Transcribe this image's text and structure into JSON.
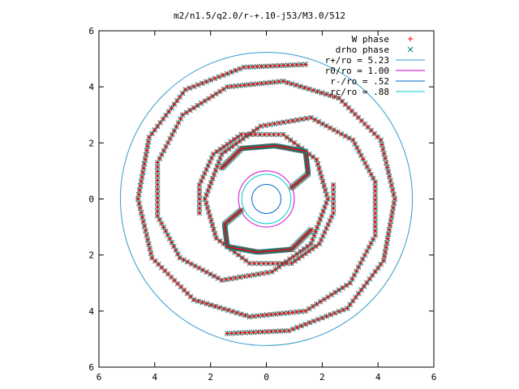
{
  "chart_data": {
    "type": "scatter",
    "title": "m2/n1.5/q2.0/r-+.10-j53/M3.0/512",
    "xlabel": "",
    "ylabel": "",
    "xlim": [
      -6,
      6
    ],
    "ylim": [
      -6,
      6
    ],
    "x_ticks": [
      "6",
      "4",
      "2",
      "0",
      "2",
      "4",
      "6"
    ],
    "y_ticks": [
      "6",
      "4",
      "2",
      "0",
      "2",
      "4",
      "6"
    ],
    "grid": false,
    "legend_position": "top-right",
    "series": [
      {
        "name": "W phase",
        "kind": "points",
        "marker": "plus",
        "color": "#ff0000"
      },
      {
        "name": "drho phase",
        "kind": "points",
        "marker": "cross",
        "color": "#008080"
      },
      {
        "name": "r+/ro = 5.23",
        "kind": "circle",
        "radius": 5.23,
        "color": "#3399cc"
      },
      {
        "name": "r0/ro = 1.00",
        "kind": "circle",
        "radius": 1.0,
        "color": "#cc00cc"
      },
      {
        "name": "r-/ro = .52",
        "kind": "circle",
        "radius": 0.52,
        "color": "#0066cc"
      },
      {
        "name": "rc/ro = .88",
        "kind": "circle",
        "radius": 0.88,
        "color": "#00cccc"
      }
    ],
    "spiral_arms": [
      {
        "points": [
          [
            2.4,
            0.5
          ],
          [
            2.4,
            -0.5
          ],
          [
            1.9,
            -1.6
          ],
          [
            0.9,
            -2.3
          ],
          [
            -0.6,
            -2.3
          ],
          [
            -1.8,
            -1.4
          ],
          [
            -2.2,
            0.0
          ],
          [
            -1.6,
            1.6
          ],
          [
            -0.2,
            2.6
          ],
          [
            1.6,
            2.9
          ],
          [
            3.1,
            2.1
          ],
          [
            3.9,
            0.6
          ],
          [
            3.9,
            -1.3
          ],
          [
            3.0,
            -3.0
          ],
          [
            1.4,
            -4.0
          ],
          [
            -0.6,
            -4.2
          ],
          [
            -2.6,
            -3.6
          ],
          [
            -4.1,
            -2.1
          ],
          [
            -4.6,
            0.0
          ],
          [
            -4.2,
            2.2
          ],
          [
            -2.9,
            3.9
          ],
          [
            -0.8,
            4.7
          ],
          [
            1.4,
            4.8
          ]
        ]
      },
      {
        "points": [
          [
            -2.4,
            -0.5
          ],
          [
            -2.4,
            0.5
          ],
          [
            -1.9,
            1.6
          ],
          [
            -0.9,
            2.3
          ],
          [
            0.6,
            2.3
          ],
          [
            1.8,
            1.4
          ],
          [
            2.2,
            0.0
          ],
          [
            1.6,
            -1.6
          ],
          [
            0.2,
            -2.6
          ],
          [
            -1.6,
            -2.9
          ],
          [
            -3.1,
            -2.1
          ],
          [
            -3.9,
            -0.6
          ],
          [
            -3.9,
            1.3
          ],
          [
            -3.0,
            3.0
          ],
          [
            -1.4,
            4.0
          ],
          [
            0.6,
            4.2
          ],
          [
            2.6,
            3.6
          ],
          [
            4.1,
            2.1
          ],
          [
            4.6,
            0.0
          ],
          [
            4.2,
            -2.2
          ],
          [
            2.9,
            -3.9
          ],
          [
            0.8,
            -4.7
          ],
          [
            -1.4,
            -4.8
          ]
        ]
      }
    ],
    "inner_arms": [
      {
        "points": [
          [
            0.9,
            0.4
          ],
          [
            1.5,
            0.9
          ],
          [
            1.4,
            1.7
          ],
          [
            0.3,
            1.9
          ],
          [
            -0.9,
            1.8
          ],
          [
            -1.6,
            1.1
          ]
        ]
      },
      {
        "points": [
          [
            -0.9,
            -0.4
          ],
          [
            -1.5,
            -0.9
          ],
          [
            -1.4,
            -1.7
          ],
          [
            -0.3,
            -1.9
          ],
          [
            0.9,
            -1.8
          ],
          [
            1.6,
            -1.1
          ]
        ]
      }
    ]
  }
}
